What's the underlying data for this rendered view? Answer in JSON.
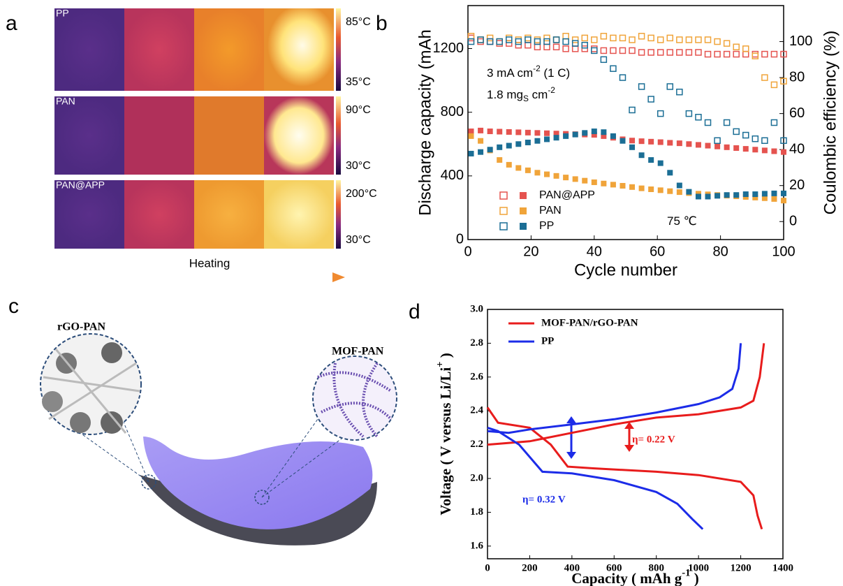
{
  "figure": {
    "panel_labels": [
      "a",
      "b",
      "c",
      "d"
    ],
    "panel_a": {
      "rows": [
        {
          "name": "PP",
          "scale_max": "85°C",
          "scale_min": "35°C"
        },
        {
          "name": "PAN",
          "scale_max": "90°C",
          "scale_min": "30°C"
        },
        {
          "name": "PAN@APP",
          "scale_max": "200°C",
          "scale_min": "30°C"
        }
      ],
      "arrow_label": "Heating"
    },
    "panel_c": {
      "labels": [
        "rGO-PAN",
        "MOF-PAN"
      ]
    }
  },
  "chart_data": [
    {
      "type": "scatter",
      "x_label": "Cycle number",
      "y_label": "Discharge capacity (mAh",
      "y2_label": "Coulombic efficiency (%)",
      "annotations": [
        {
          "parts": [
            {
              "text": "3 mA cm"
            },
            {
              "text": "-2",
              "sup": true
            },
            {
              "text": " (1 C)"
            }
          ]
        },
        {
          "parts": [
            {
              "text": "1.8 mg"
            },
            {
              "text": "S",
              "sub": true
            },
            {
              "text": " cm"
            },
            {
              "text": "-2",
              "sup": true
            }
          ]
        },
        {
          "parts": [
            {
              "text": "75 ℃"
            }
          ]
        }
      ],
      "xlim": [
        0,
        100
      ],
      "xticks": [
        0,
        20,
        40,
        60,
        80,
        100
      ],
      "ylim": [
        0,
        1470
      ],
      "yticks": [
        0,
        400,
        800,
        1200
      ],
      "y2lim": [
        -10,
        120
      ],
      "y2ticks": [
        0,
        20,
        40,
        60,
        80,
        100
      ],
      "x": [
        1,
        4,
        7,
        10,
        13,
        16,
        19,
        22,
        25,
        28,
        31,
        34,
        37,
        40,
        43,
        46,
        49,
        52,
        55,
        58,
        61,
        64,
        67,
        70,
        73,
        76,
        79,
        82,
        85,
        88,
        91,
        94,
        97,
        100
      ],
      "series": [
        {
          "name": "PAN@APP",
          "color": "#e5534f",
          "values": [
            680,
            685,
            680,
            678,
            676,
            674,
            672,
            670,
            668,
            666,
            664,
            662,
            660,
            658,
            650,
            640,
            630,
            622,
            618,
            615,
            612,
            608,
            605,
            600,
            595,
            590,
            585,
            580,
            575,
            570,
            565,
            560,
            555,
            550
          ],
          "y2_values": [
            102,
            100,
            100,
            99,
            99,
            98,
            98,
            97,
            97,
            97,
            96,
            96,
            96,
            96,
            95,
            95,
            95,
            95,
            94,
            94,
            94,
            94,
            94,
            94,
            94,
            93,
            93,
            93,
            93,
            93,
            93,
            93,
            93,
            93
          ]
        },
        {
          "name": "PAN",
          "color": "#f0a43a",
          "values": [
            650,
            620,
            560,
            500,
            470,
            450,
            435,
            420,
            410,
            400,
            390,
            380,
            370,
            360,
            352,
            345,
            338,
            330,
            322,
            316,
            310,
            304,
            298,
            292,
            288,
            284,
            280,
            276,
            272,
            268,
            264,
            260,
            255,
            245
          ],
          "y2_values": [
            103,
            101,
            102,
            100,
            102,
            101,
            102,
            101,
            102,
            101,
            103,
            101,
            102,
            101,
            103,
            102,
            102,
            101,
            103,
            102,
            101,
            102,
            101,
            101,
            101,
            101,
            100,
            99,
            97,
            96,
            92,
            80,
            76,
            78
          ]
        },
        {
          "name": "PP",
          "color": "#1b6e95",
          "values": [
            540,
            550,
            565,
            580,
            590,
            600,
            610,
            620,
            630,
            640,
            650,
            660,
            670,
            680,
            675,
            650,
            620,
            580,
            530,
            500,
            480,
            420,
            340,
            300,
            270,
            270,
            275,
            280,
            280,
            285,
            285,
            288,
            290,
            290
          ],
          "y2_values": [
            100,
            101,
            100,
            100,
            101,
            100,
            101,
            100,
            100,
            101,
            100,
            99,
            98,
            95,
            90,
            85,
            80,
            62,
            75,
            68,
            60,
            75,
            72,
            60,
            58,
            55,
            45,
            55,
            50,
            48,
            46,
            45,
            55,
            45
          ]
        }
      ]
    },
    {
      "type": "line",
      "x_label": [
        {
          "text": "Capacity ( mAh g"
        },
        {
          "text": "-1",
          "sup": true
        },
        {
          "text": " )"
        }
      ],
      "y_label": [
        {
          "text": "Voltage ( V versus Li/Li"
        },
        {
          "text": "+",
          "sup": true
        },
        {
          "text": " )"
        }
      ],
      "annotations": [
        {
          "text": "η= 0.22 V",
          "color": "#e81c1c"
        },
        {
          "text": "η= 0.32 V",
          "color": "#1c2ce8"
        }
      ],
      "xlim": [
        0,
        1400
      ],
      "xticks": [
        0,
        200,
        400,
        600,
        800,
        1000,
        1200,
        1400
      ],
      "ylim": [
        1.525,
        3.0
      ],
      "yticks": [
        {
          "value": 1.6,
          "label": "1.6"
        },
        {
          "value": 1.8,
          "label": "1.8"
        },
        {
          "value": 2.0,
          "label": "2.0"
        },
        {
          "value": 2.2,
          "label": "2.2"
        },
        {
          "value": 2.4,
          "label": "2.4"
        },
        {
          "value": 2.6,
          "label": "2.6"
        },
        {
          "value": 2.8,
          "label": "2.8"
        },
        {
          "value": 3.0,
          "label": "3.0"
        }
      ],
      "series": [
        {
          "name": "MOF-PAN/rGO-PAN",
          "color": "#e81c1c",
          "x": [
            0,
            200,
            400,
            600,
            800,
            1000,
            1200,
            1260,
            1290,
            1310,
            null,
            0,
            50,
            200,
            300,
            380,
            500,
            800,
            1000,
            1200,
            1260,
            1280,
            1300
          ],
          "values": [
            2.2,
            2.22,
            2.27,
            2.32,
            2.36,
            2.38,
            2.42,
            2.46,
            2.6,
            2.8,
            null,
            2.42,
            2.33,
            2.3,
            2.2,
            2.07,
            2.06,
            2.04,
            2.02,
            1.98,
            1.9,
            1.78,
            1.7
          ]
        },
        {
          "name": "PP",
          "color": "#1c2ce8",
          "x": [
            0,
            100,
            200,
            400,
            600,
            800,
            1000,
            1100,
            1160,
            1190,
            1200,
            null,
            0,
            50,
            150,
            260,
            400,
            600,
            800,
            900,
            970,
            1020
          ],
          "values": [
            2.28,
            2.27,
            2.29,
            2.32,
            2.35,
            2.39,
            2.44,
            2.48,
            2.53,
            2.65,
            2.8,
            null,
            2.3,
            2.28,
            2.2,
            2.04,
            2.03,
            1.99,
            1.92,
            1.85,
            1.76,
            1.7
          ]
        }
      ]
    }
  ]
}
